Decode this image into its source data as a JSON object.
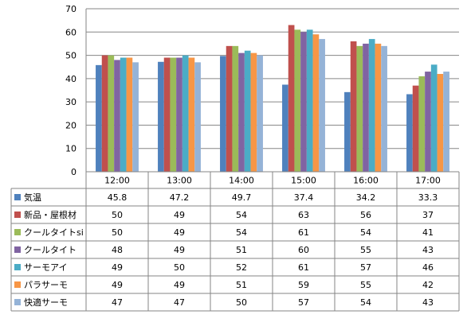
{
  "chart_data": {
    "type": "bar",
    "categories": [
      "12:00",
      "13:00",
      "14:00",
      "15:00",
      "16:00",
      "17:00"
    ],
    "ylim": [
      0,
      70
    ],
    "yticks": [
      0,
      10,
      20,
      30,
      40,
      50,
      60,
      70
    ],
    "grid": true,
    "legend": "data-table-left",
    "series": [
      {
        "name": "気温",
        "color": "#4F81BD",
        "values": [
          45.8,
          47.2,
          49.7,
          37.4,
          34.2,
          33.3
        ],
        "labels": [
          "45.8",
          "47.2",
          "49.7",
          "37.4",
          "34.2",
          "33.3"
        ]
      },
      {
        "name": "新品・屋根材",
        "color": "#C0504D",
        "values": [
          50,
          49,
          54,
          63,
          56,
          37
        ],
        "labels": [
          "50",
          "49",
          "54",
          "63",
          "56",
          "37"
        ]
      },
      {
        "name": "クールタイトsi",
        "color": "#9BBB59",
        "values": [
          50,
          49,
          54,
          61,
          54,
          41
        ],
        "labels": [
          "50",
          "49",
          "54",
          "61",
          "54",
          "41"
        ]
      },
      {
        "name": "クールタイト",
        "color": "#8064A2",
        "values": [
          48,
          49,
          51,
          60,
          55,
          43
        ],
        "labels": [
          "48",
          "49",
          "51",
          "60",
          "55",
          "43"
        ]
      },
      {
        "name": "サーモアイ",
        "color": "#4BACC6",
        "values": [
          49,
          50,
          52,
          61,
          57,
          46
        ],
        "labels": [
          "49",
          "50",
          "52",
          "61",
          "57",
          "46"
        ]
      },
      {
        "name": "パラサーモ",
        "color": "#F79646",
        "values": [
          49,
          49,
          51,
          59,
          55,
          42
        ],
        "labels": [
          "49",
          "49",
          "51",
          "59",
          "55",
          "42"
        ]
      },
      {
        "name": "快適サーモ",
        "color": "#95B3D7",
        "values": [
          47,
          47,
          50,
          57,
          54,
          43
        ],
        "labels": [
          "47",
          "47",
          "50",
          "57",
          "54",
          "43"
        ]
      }
    ]
  }
}
